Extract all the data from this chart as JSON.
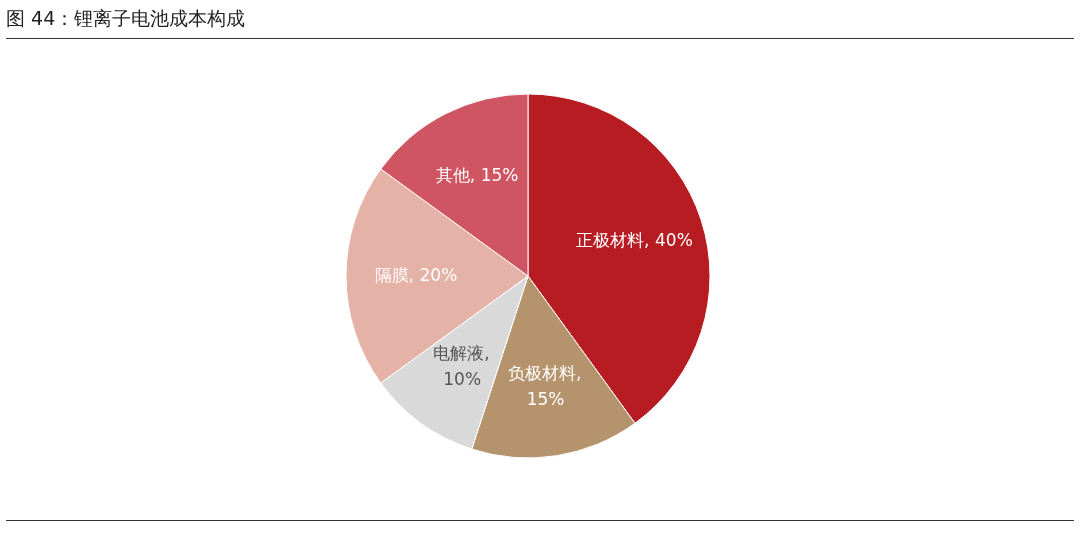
{
  "chart_data": {
    "type": "pie",
    "title": "图 44：锂离子电池成本构成",
    "categories": [
      "正极材料",
      "负极材料",
      "电解液",
      "隔膜",
      "其他"
    ],
    "values": [
      40,
      15,
      10,
      20,
      15
    ],
    "colors": [
      "#b71c23",
      "#b5946d",
      "#d9d9d9",
      "#e4b2a6",
      "#d05563"
    ],
    "value_labels": [
      ", 40%",
      ", 15%",
      ", 10%",
      ", 20%",
      ", 15%"
    ],
    "legend": false
  }
}
